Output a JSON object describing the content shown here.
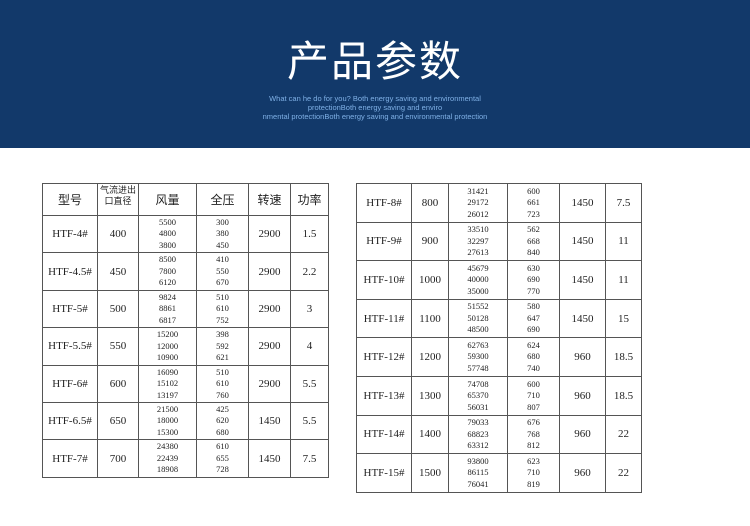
{
  "header": {
    "title": "产品参数",
    "subtitle": [
      "What can he do for you? Both energy saving and environmental",
      "protectionBoth energy saving and enviro",
      "nmental protectionBoth energy saving and environmental protection"
    ]
  },
  "left_table": {
    "columns": [
      "型号",
      "气流进出口直径",
      "风量",
      "全压",
      "转速",
      "功率"
    ],
    "rows": [
      [
        "HTF-4#",
        "400",
        [
          "5500",
          "4800",
          "3800"
        ],
        [
          "300",
          "380",
          "450"
        ],
        "2900",
        "1.5"
      ],
      [
        "HTF-4.5#",
        "450",
        [
          "8500",
          "7800",
          "6120"
        ],
        [
          "410",
          "550",
          "670"
        ],
        "2900",
        "2.2"
      ],
      [
        "HTF-5#",
        "500",
        [
          "9824",
          "8861",
          "6817"
        ],
        [
          "510",
          "610",
          "752"
        ],
        "2900",
        "3"
      ],
      [
        "HTF-5.5#",
        "550",
        [
          "15200",
          "12000",
          "10900"
        ],
        [
          "398",
          "592",
          "621"
        ],
        "2900",
        "4"
      ],
      [
        "HTF-6#",
        "600",
        [
          "16090",
          "15102",
          "13197"
        ],
        [
          "510",
          "610",
          "760"
        ],
        "2900",
        "5.5"
      ],
      [
        "HTF-6.5#",
        "650",
        [
          "21500",
          "18000",
          "15300"
        ],
        [
          "425",
          "620",
          "680"
        ],
        "1450",
        "5.5"
      ],
      [
        "HTF-7#",
        "700",
        [
          "24380",
          "22439",
          "18908"
        ],
        [
          "610",
          "655",
          "728"
        ],
        "1450",
        "7.5"
      ]
    ]
  },
  "right_table": {
    "rows": [
      [
        "HTF-8#",
        "800",
        [
          "31421",
          "29172",
          "26012"
        ],
        [
          "600",
          "661",
          "723"
        ],
        "1450",
        "7.5"
      ],
      [
        "HTF-9#",
        "900",
        [
          "33510",
          "32297",
          "27613"
        ],
        [
          "562",
          "668",
          "840"
        ],
        "1450",
        "11"
      ],
      [
        "HTF-10#",
        "1000",
        [
          "45679",
          "40000",
          "35000"
        ],
        [
          "630",
          "690",
          "770"
        ],
        "1450",
        "11"
      ],
      [
        "HTF-11#",
        "1100",
        [
          "51552",
          "50128",
          "48500"
        ],
        [
          "580",
          "647",
          "690"
        ],
        "1450",
        "15"
      ],
      [
        "HTF-12#",
        "1200",
        [
          "62763",
          "59300",
          "57748"
        ],
        [
          "624",
          "680",
          "740"
        ],
        "960",
        "18.5"
      ],
      [
        "HTF-13#",
        "1300",
        [
          "74708",
          "65370",
          "56031"
        ],
        [
          "600",
          "710",
          "807"
        ],
        "960",
        "18.5"
      ],
      [
        "HTF-14#",
        "1400",
        [
          "79033",
          "68823",
          "63312"
        ],
        [
          "676",
          "768",
          "812"
        ],
        "960",
        "22"
      ],
      [
        "HTF-15#",
        "1500",
        [
          "93800",
          "86115",
          "76041"
        ],
        [
          "623",
          "710",
          "819"
        ],
        "960",
        "22"
      ]
    ]
  }
}
